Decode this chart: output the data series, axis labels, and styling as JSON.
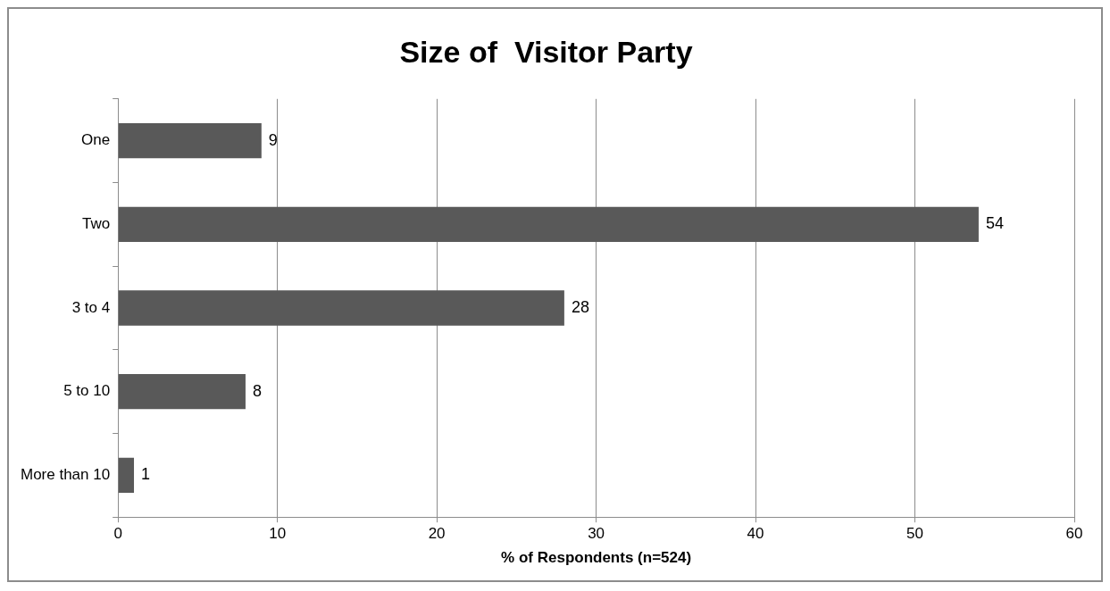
{
  "chart_data": {
    "type": "bar",
    "orientation": "horizontal",
    "title": "Size of  Visitor Party",
    "xlabel": "% of Respondents (n=524)",
    "categories": [
      "One",
      "Two",
      "3 to 4",
      "5 to 10",
      "More than 10"
    ],
    "values": [
      9,
      54,
      28,
      8,
      1
    ],
    "color": "#595959",
    "xlim": [
      0,
      60
    ],
    "xticks": [
      0,
      10,
      20,
      30,
      40,
      50,
      60
    ],
    "grid": "x",
    "legend": false,
    "data_labels": true
  }
}
